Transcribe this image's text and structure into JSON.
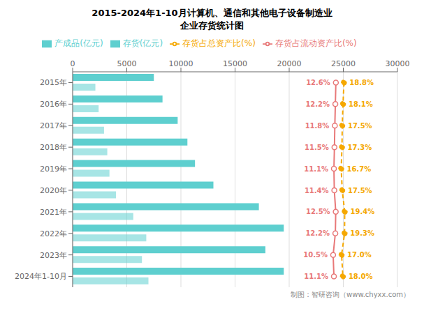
{
  "chart_data": {
    "type": "bar",
    "orientation": "horizontal",
    "title": "2015-2024年1-10月计算机、通信和其他电子设备制造业",
    "subtitle": "企业存货统计图",
    "annotations": [
      "制图：智研咨询（www.chyxx.com）"
    ],
    "categories": [
      "2015年",
      "2016年",
      "2017年",
      "2018年",
      "2019年",
      "2020年",
      "2021年",
      "2022年",
      "2023年",
      "2024年1-10月"
    ],
    "series": [
      {
        "name": "存货(亿元)",
        "color": "#5ECFCF",
        "values": [
          7500,
          8300,
          9700,
          10600,
          11300,
          13000,
          17200,
          19500,
          17800,
          19500
        ]
      },
      {
        "name": "产成品(亿元)",
        "color": "#5ECFCF",
        "values": [
          2100,
          2400,
          2900,
          3200,
          3400,
          4000,
          5600,
          6800,
          6400,
          7000
        ]
      },
      {
        "name": "存货占流动资产比(%)",
        "type": "line",
        "axis": "y2",
        "color": "#E87878",
        "line_style": "solid",
        "marker": "circle",
        "values": [
          12.6,
          12.2,
          11.8,
          11.5,
          11.1,
          11.4,
          12.5,
          12.2,
          10.5,
          11.1
        ],
        "value_labels": [
          "12.6%",
          "12.2%",
          "11.8%",
          "11.5%",
          "11.1%",
          "11.4%",
          "12.5%",
          "12.2%",
          "10.5%",
          "11.1%"
        ]
      },
      {
        "name": "存货占总资产比(%)",
        "type": "line",
        "axis": "y2",
        "color": "#F5A800",
        "line_style": "dashed",
        "marker": "circle",
        "values": [
          18.8,
          18.1,
          17.5,
          17.3,
          16.7,
          17.5,
          19.4,
          19.3,
          17.0,
          18.0
        ],
        "value_labels": [
          "18.8%",
          "18.1%",
          "17.5%",
          "17.3%",
          "16.7%",
          "17.5%",
          "19.4%",
          "19.3%",
          "17.0%",
          "18.0%"
        ]
      }
    ],
    "xlim": [
      0,
      30000
    ],
    "xticks": [
      0,
      5000,
      10000,
      15000,
      20000,
      25000,
      30000
    ],
    "y2lim": [
      -190,
      60
    ],
    "grid": true,
    "data_labels": true
  }
}
